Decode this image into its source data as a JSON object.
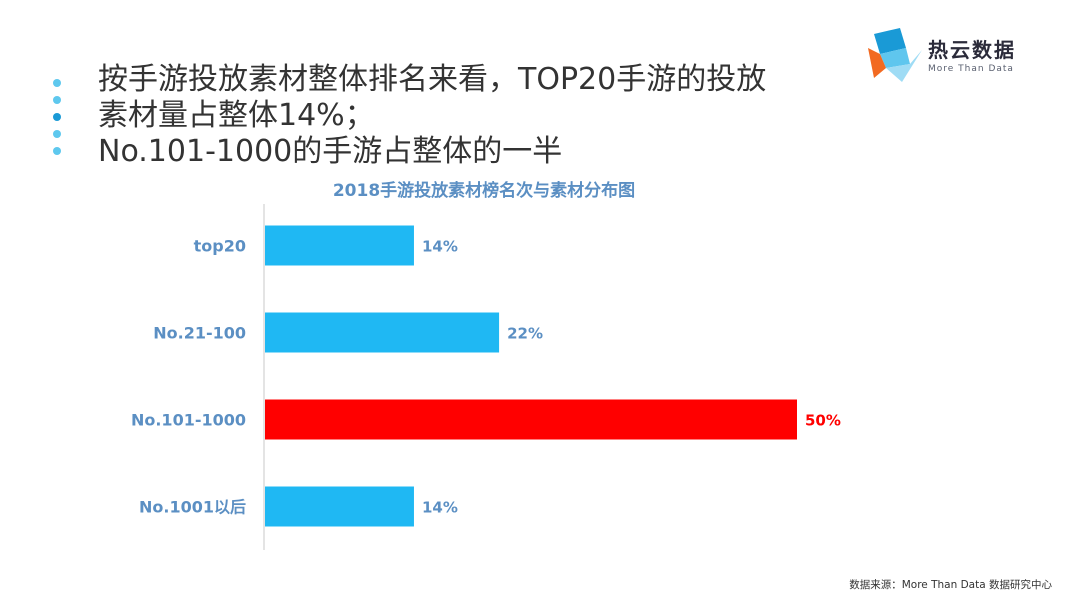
{
  "headline": {
    "line1": "按手游投放素材整体排名来看，TOP20手游的投放",
    "line2": "素材量占整体14%；",
    "line3": "No.101-1000的手游占整体的一半"
  },
  "logo": {
    "name": "热云数据",
    "tagline": "More Than Data"
  },
  "source": "数据来源：More Than Data 数据研究中心",
  "colors": {
    "bar_default": "#1fb8f3",
    "bar_highlight": "#ff0000",
    "label": "#5b8fc3",
    "axis": "#c8c8c8"
  },
  "chart_data": {
    "type": "bar",
    "orientation": "horizontal",
    "title": "2018手游投放素材榜名次与素材分布图",
    "categories": [
      "top20",
      "No.21-100",
      "No.101-1000",
      "No.1001以后"
    ],
    "values": [
      14,
      22,
      50,
      14
    ],
    "value_labels": [
      "14%",
      "22%",
      "50%",
      "14%"
    ],
    "highlight_index": 2,
    "xlim": [
      0,
      50
    ],
    "grid": false,
    "legend": "none"
  }
}
